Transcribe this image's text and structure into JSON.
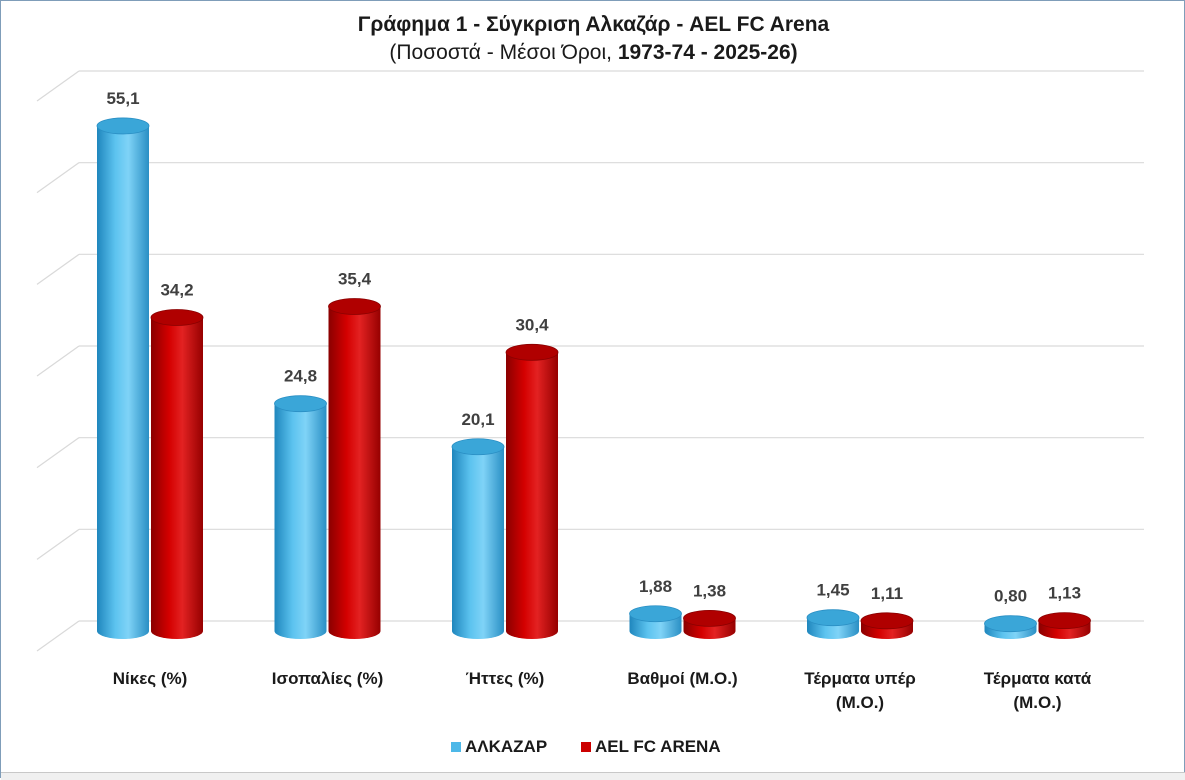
{
  "chart_data": {
    "type": "bar",
    "title": "Γράφημα 1 - Σύγκριση Αλκαζάρ - AEL FC Arena",
    "subtitle_prefix": "(Ποσοστά - Μέσοι Όροι, ",
    "subtitle_range": "1973-74 - 2025-26)",
    "categories": [
      [
        "Νίκες (%)"
      ],
      [
        "Ισοπαλίες (%)"
      ],
      [
        "Ήττες (%)"
      ],
      [
        "Βαθμοί (Μ.Ο.)"
      ],
      [
        "Τέρματα υπέρ",
        "(Μ.Ο.)"
      ],
      [
        "Τέρματα κατά",
        "(Μ.Ο.)"
      ]
    ],
    "series": [
      {
        "name": "ΑΛΚΑΖΑΡ",
        "color": "#4db8e8",
        "values": [
          55.1,
          24.8,
          20.1,
          1.88,
          1.45,
          0.8
        ],
        "labels": [
          "55,1",
          "24,8",
          "20,1",
          "1,88",
          "1,45",
          "0,80"
        ]
      },
      {
        "name": "AEL FC ARENA",
        "color": "#cc0000",
        "values": [
          34.2,
          35.4,
          30.4,
          1.38,
          1.11,
          1.13
        ],
        "labels": [
          "34,2",
          "35,4",
          "30,4",
          "1,38",
          "1,11",
          "1,13"
        ]
      }
    ],
    "ylim": [
      0,
      60
    ],
    "ytick_step": 10,
    "grid": true,
    "legend_position": "bottom"
  }
}
